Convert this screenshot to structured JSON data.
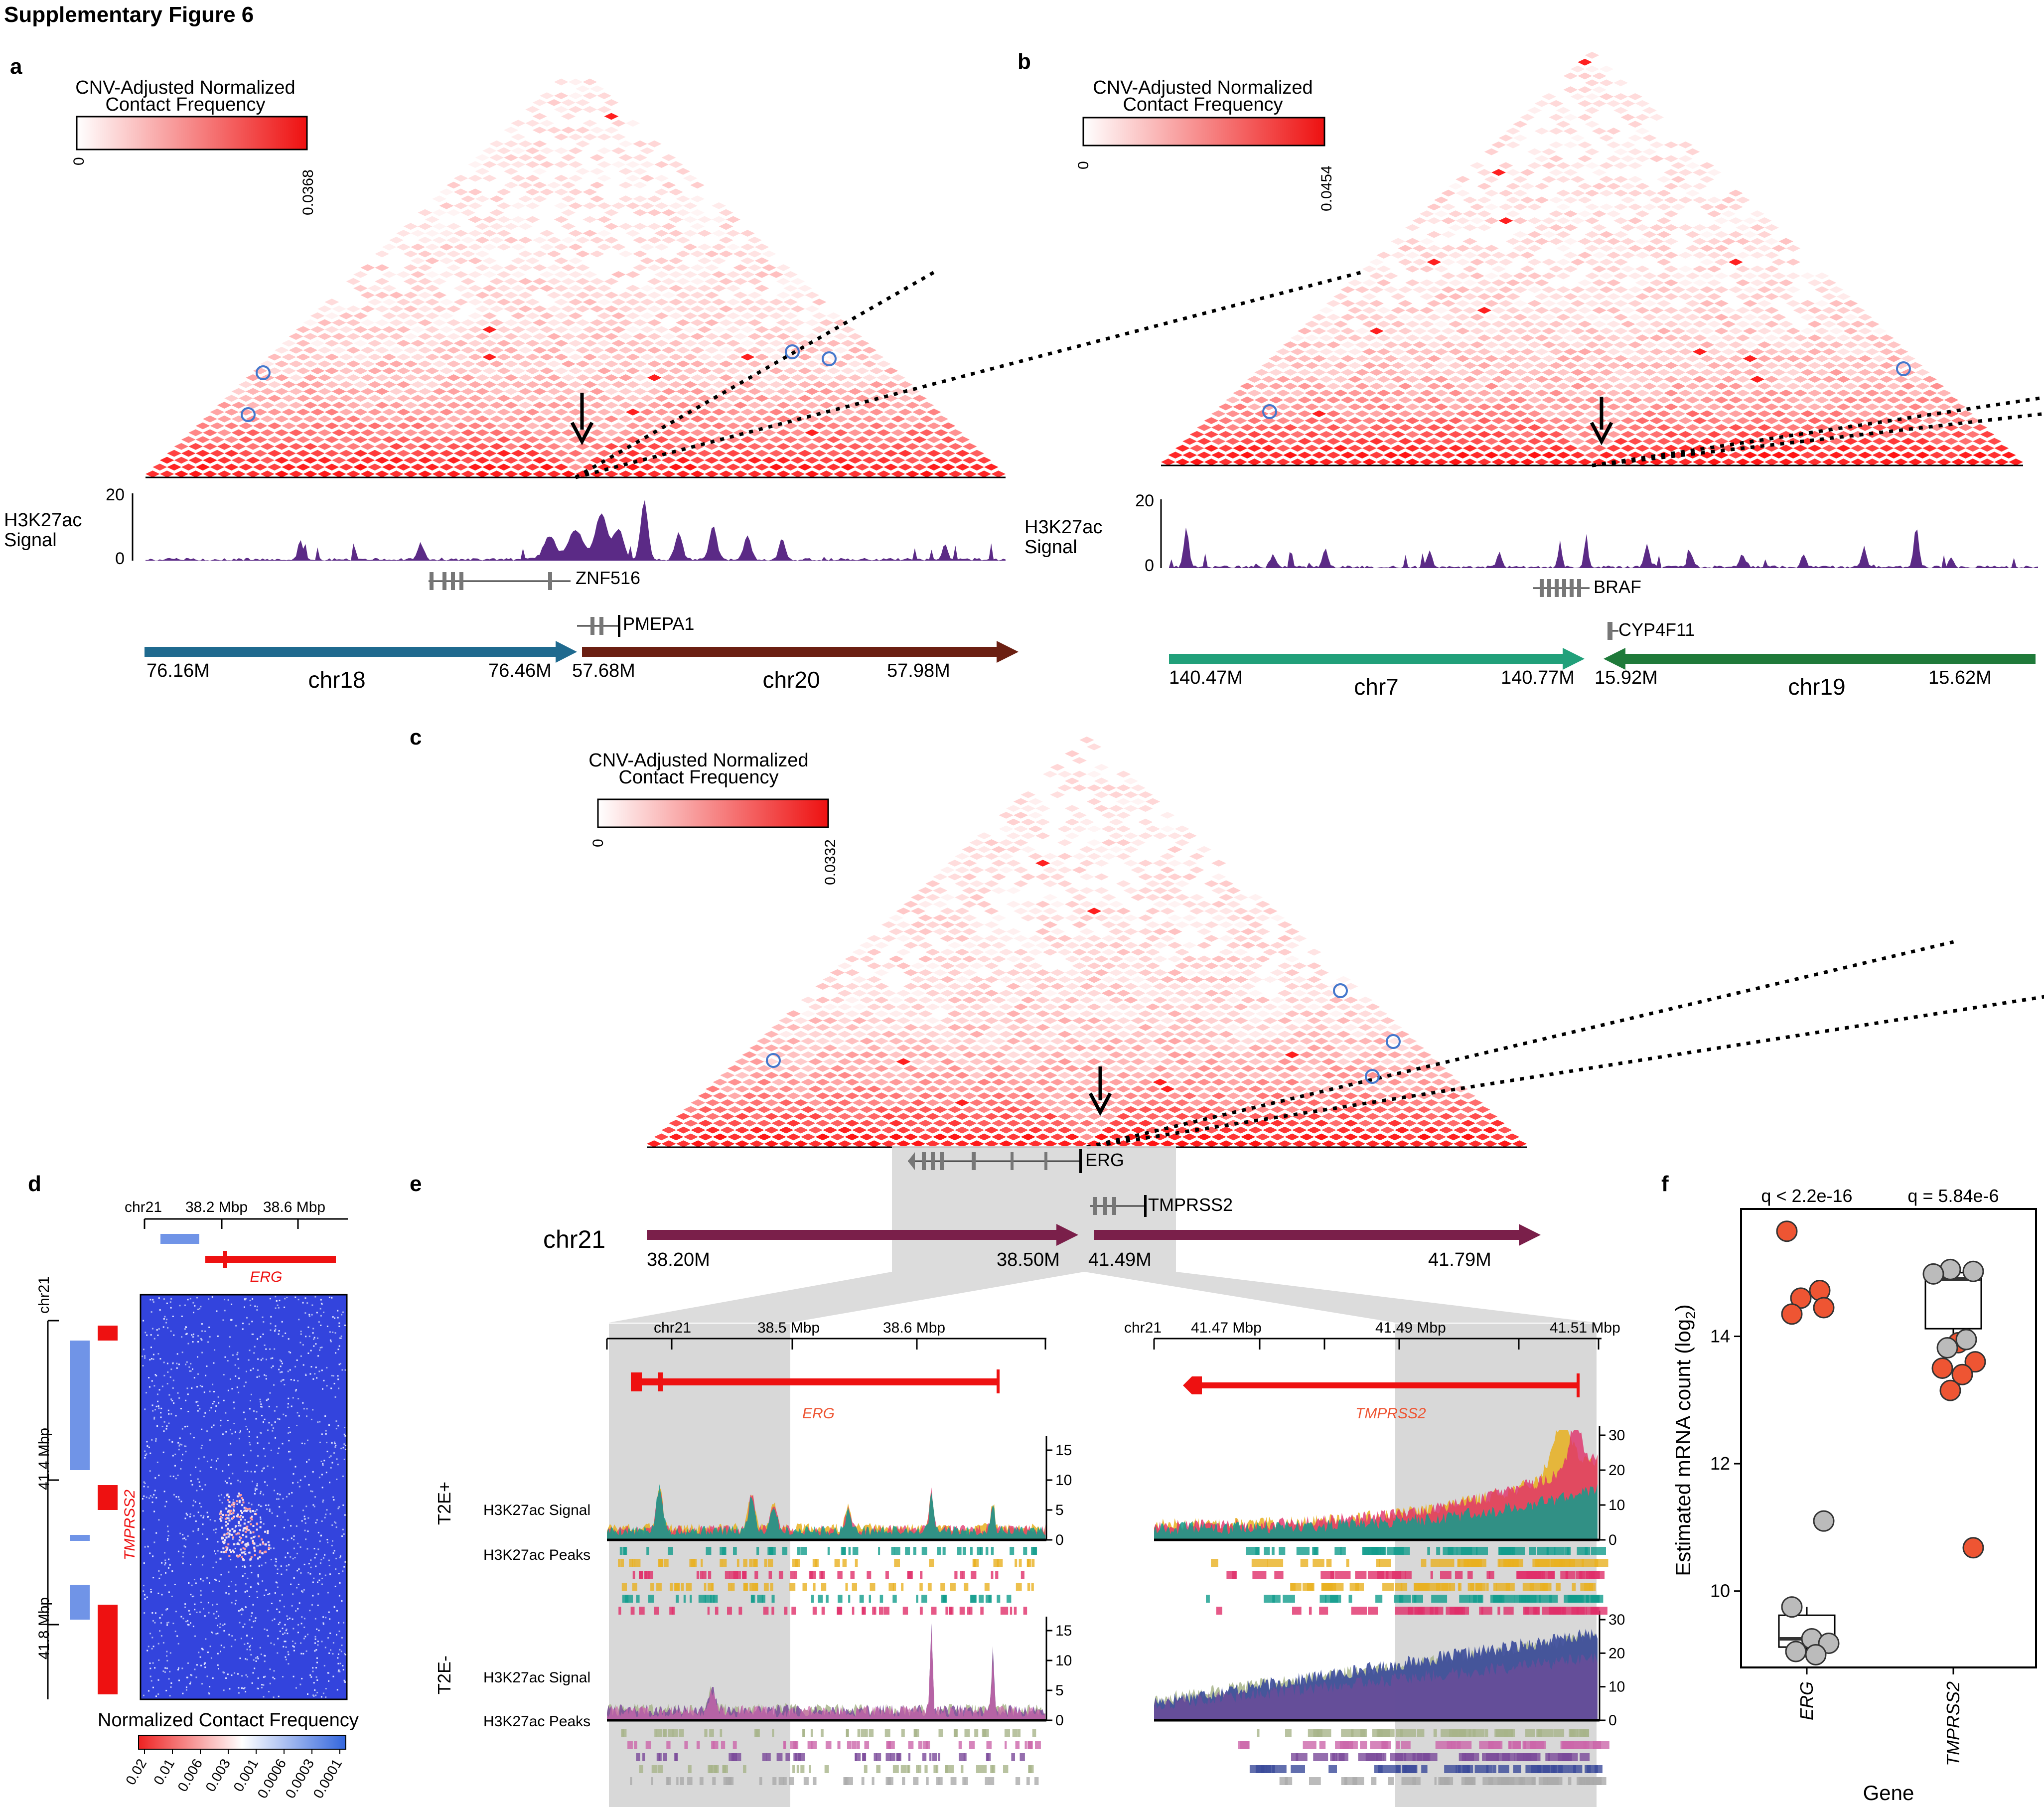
{
  "figure": {
    "title": "Supplementary Figure 6"
  },
  "colors": {
    "heat_hi": "#ee1111",
    "h3k27ac": "#5b2a86",
    "chr18": "#1f6a8f",
    "chr20": "#6b1f12",
    "chr7": "#21a07a",
    "chr19": "#1f7a3a",
    "chr21": "#7a1f4a",
    "erg_gene": "#ee1111",
    "circle": "#4477cc",
    "point_red": "#ee5533",
    "point_grey": "#bbbbbb"
  },
  "panels": {
    "a": {
      "letter": "a",
      "colorbar": {
        "title1": "CNV-Adjusted Normalized",
        "title2": "Contact Frequency",
        "min": "0",
        "max": "0.0368"
      },
      "track": {
        "label1": "H3K27ac",
        "label2": "Signal",
        "ymax": "20",
        "ymin": "0"
      },
      "genes": [
        "ZNF516",
        "PMEPA1"
      ],
      "chromosomes": [
        {
          "name": "chr18",
          "start": "76.16M",
          "end": "76.46M"
        },
        {
          "name": "chr20",
          "start": "57.68M",
          "end": "57.98M"
        }
      ]
    },
    "b": {
      "letter": "b",
      "colorbar": {
        "title1": "CNV-Adjusted Normalized",
        "title2": "Contact Frequency",
        "min": "0",
        "max": "0.0454"
      },
      "track": {
        "label1": "H3K27ac",
        "label2": "Signal",
        "ymax": "20",
        "ymin": "0"
      },
      "genes": [
        "BRAF",
        "CYP4F11"
      ],
      "chromosomes": [
        {
          "name": "chr7",
          "start": "140.47M",
          "end": "140.77M"
        },
        {
          "name": "chr19",
          "start": "15.92M",
          "end": "15.62M"
        }
      ]
    },
    "c": {
      "letter": "c",
      "colorbar": {
        "title1": "CNV-Adjusted Normalized",
        "title2": "Contact Frequency",
        "min": "0",
        "max": "0.0332"
      },
      "genes": [
        "ERG",
        "TMPRSS2"
      ],
      "chrom": "chr21",
      "chromosomes": [
        {
          "start": "38.20M",
          "end": "38.50M"
        },
        {
          "start": "41.49M",
          "end": "41.79M"
        }
      ]
    },
    "d": {
      "letter": "d",
      "top_ticks": [
        "chr21",
        "38.2 Mbp",
        "38.6 Mbp"
      ],
      "left_ticks": [
        "chr21",
        "41.4 Mbp",
        "41.8 Mbp"
      ],
      "gene_top": "ERG",
      "gene_left": "TMPRSS2",
      "legend_title": "Normalized Contact Frequency",
      "legend_ticks": [
        "0.02",
        "0.01",
        "0.006",
        "0.003",
        "0.001",
        "0.0006",
        "0.0003",
        "0.0001"
      ]
    },
    "e": {
      "letter": "e",
      "left": {
        "ticks": [
          "chr21",
          "38.5 Mbp",
          "38.6 Mbp"
        ],
        "gene": "ERG"
      },
      "right": {
        "ticks": [
          "chr21",
          "41.47 Mbp",
          "41.49 Mbp",
          "41.51 Mbp"
        ],
        "gene": "TMPRSS2"
      },
      "row_t2e_pos": "T2E+",
      "row_t2e_neg": "T2E-",
      "signal_label": "H3K27ac Signal",
      "peaks_label": "H3K27ac Peaks",
      "left_axis_ticks": [
        "15",
        "10",
        "5",
        "0"
      ],
      "right_axis_ticks": [
        "30",
        "20",
        "10",
        "0"
      ]
    },
    "f": {
      "letter": "f",
      "ylabel": "Estimated mRNA count (log",
      "ylabel_sub": "2",
      "ylabel_end": ")",
      "xlabel": "Gene",
      "stats": [
        "q < 2.2e-16",
        "q = 5.84e-6"
      ]
    }
  },
  "chart_data": {
    "type": "scatter",
    "title": "",
    "xlabel": "Gene",
    "ylabel": "Estimated mRNA count (log2)",
    "categories": [
      "ERG",
      "TMPRSS2"
    ],
    "ylim": [
      8.8,
      16.0
    ],
    "yticks": [
      10,
      12,
      14
    ],
    "annotations": [
      "q < 2.2e-16",
      "q = 5.84e-6"
    ],
    "boxplots": [
      {
        "category": "ERG",
        "q1": 9.12,
        "median": 9.25,
        "q3": 9.62,
        "whisker_low": 9.05,
        "whisker_high": 9.75
      },
      {
        "category": "TMPRSS2",
        "q1": 14.12,
        "median": 14.9,
        "q3": 15.0,
        "whisker_low": 13.85,
        "whisker_high": 15.05
      }
    ],
    "series": [
      {
        "name": "T2E+",
        "color": "#ee5533",
        "points": [
          {
            "category": "ERG",
            "y": 15.65
          },
          {
            "category": "ERG",
            "y": 14.72
          },
          {
            "category": "ERG",
            "y": 14.6
          },
          {
            "category": "ERG",
            "y": 14.45
          },
          {
            "category": "ERG",
            "y": 14.35
          },
          {
            "category": "TMPRSS2",
            "y": 13.9
          },
          {
            "category": "TMPRSS2",
            "y": 13.6
          },
          {
            "category": "TMPRSS2",
            "y": 13.5
          },
          {
            "category": "TMPRSS2",
            "y": 13.4
          },
          {
            "category": "TMPRSS2",
            "y": 13.15
          },
          {
            "category": "TMPRSS2",
            "y": 10.68
          }
        ]
      },
      {
        "name": "T2E-",
        "color": "#bbbbbb",
        "points": [
          {
            "category": "ERG",
            "y": 11.1
          },
          {
            "category": "ERG",
            "y": 9.75
          },
          {
            "category": "ERG",
            "y": 9.25
          },
          {
            "category": "ERG",
            "y": 9.18
          },
          {
            "category": "ERG",
            "y": 9.05
          },
          {
            "category": "ERG",
            "y": 9.0
          },
          {
            "category": "TMPRSS2",
            "y": 15.05
          },
          {
            "category": "TMPRSS2",
            "y": 15.02
          },
          {
            "category": "TMPRSS2",
            "y": 14.98
          },
          {
            "category": "TMPRSS2",
            "y": 13.95
          },
          {
            "category": "TMPRSS2",
            "y": 13.82
          }
        ]
      }
    ]
  }
}
